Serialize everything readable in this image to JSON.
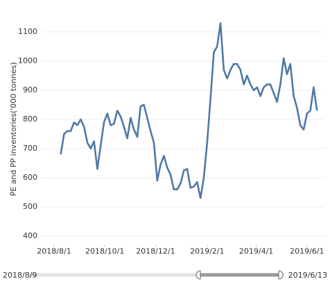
{
  "chart_data": {
    "type": "line",
    "y_label": "PE and PP inventories('000 tonnes)",
    "xlim": [
      "2018/7/17",
      "2019/6/22"
    ],
    "xticks": [
      "2018/8/1",
      "2018/10/1",
      "2018/12/1",
      "2019/2/1",
      "2019/4/1",
      "2019/6/1"
    ],
    "ylim": [
      370,
      1160
    ],
    "yticks": [
      400,
      500,
      600,
      700,
      800,
      900,
      1000,
      1100
    ],
    "grid": true,
    "x": [
      "2018/8/9",
      "2018/8/13",
      "2018/8/17",
      "2018/8/21",
      "2018/8/25",
      "2018/8/29",
      "2018/9/2",
      "2018/9/6",
      "2018/9/10",
      "2018/9/14",
      "2018/9/18",
      "2018/9/22",
      "2018/9/26",
      "2018/9/30",
      "2018/10/4",
      "2018/10/8",
      "2018/10/12",
      "2018/10/16",
      "2018/10/20",
      "2018/10/24",
      "2018/10/28",
      "2018/11/1",
      "2018/11/5",
      "2018/11/9",
      "2018/11/13",
      "2018/11/17",
      "2018/11/21",
      "2018/11/25",
      "2018/11/29",
      "2018/12/3",
      "2018/12/7",
      "2018/12/11",
      "2018/12/15",
      "2018/12/19",
      "2018/12/23",
      "2018/12/27",
      "2018/12/31",
      "2019/1/4",
      "2019/1/8",
      "2019/1/12",
      "2019/1/16",
      "2019/1/20",
      "2019/1/24",
      "2019/1/28",
      "2019/2/1",
      "2019/2/5",
      "2019/2/9",
      "2019/2/13",
      "2019/2/17",
      "2019/2/21",
      "2019/2/25",
      "2019/3/1",
      "2019/3/5",
      "2019/3/9",
      "2019/3/13",
      "2019/3/17",
      "2019/3/21",
      "2019/3/25",
      "2019/3/29",
      "2019/4/2",
      "2019/4/6",
      "2019/4/10",
      "2019/4/14",
      "2019/4/18",
      "2019/4/22",
      "2019/4/26",
      "2019/4/30",
      "2019/5/4",
      "2019/5/8",
      "2019/5/12",
      "2019/5/16",
      "2019/5/20",
      "2019/5/24",
      "2019/5/28",
      "2019/6/1",
      "2019/6/5",
      "2019/6/9",
      "2019/6/13"
    ],
    "series": [
      {
        "color": "#4e79a7",
        "values": [
          680,
          750,
          760,
          760,
          790,
          780,
          800,
          775,
          720,
          700,
          725,
          630,
          710,
          790,
          820,
          780,
          785,
          830,
          810,
          775,
          735,
          805,
          765,
          740,
          845,
          850,
          805,
          760,
          720,
          590,
          645,
          675,
          635,
          610,
          560,
          560,
          580,
          625,
          630,
          565,
          570,
          585,
          530,
          600,
          720,
          870,
          1030,
          1050,
          1130,
          970,
          940,
          970,
          990,
          990,
          970,
          920,
          950,
          920,
          900,
          910,
          880,
          910,
          920,
          920,
          890,
          860,
          920,
          1010,
          955,
          990,
          880,
          840,
          780,
          765,
          820,
          830,
          910,
          830
        ]
      }
    ]
  },
  "slider": {
    "start_label": "2018/8/9",
    "end_label": "2019/6/13"
  }
}
